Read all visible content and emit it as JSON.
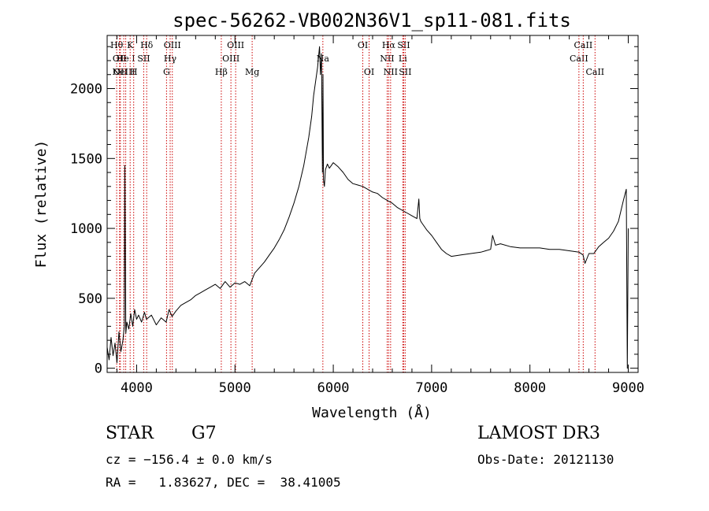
{
  "colors": {
    "ink": "#000000",
    "line_marker": "#cc0000",
    "background": "#ffffff"
  },
  "chart_data": {
    "type": "line",
    "title": "spec-56262-VB002N36V1_sp11-081.fits",
    "xlabel": "Wavelength (Å)",
    "ylabel": "Flux (relative)",
    "xlim": [
      3700,
      9100
    ],
    "ylim": [
      -30,
      2380
    ],
    "x_ticks": [
      4000,
      5000,
      6000,
      7000,
      8000,
      9000
    ],
    "x_tick_labels": [
      "4000",
      "5000",
      "6000",
      "7000",
      "8000",
      "9000"
    ],
    "y_ticks": [
      0,
      500,
      1000,
      1500,
      2000
    ],
    "y_tick_labels": [
      "0",
      "500",
      "1000",
      "1500",
      "2000"
    ],
    "grid": false,
    "series": [
      {
        "name": "flux",
        "x": [
          3700,
          3720,
          3740,
          3760,
          3780,
          3800,
          3820,
          3840,
          3860,
          3875,
          3880,
          3890,
          3900,
          3920,
          3940,
          3960,
          3980,
          4000,
          4020,
          4050,
          4080,
          4100,
          4150,
          4200,
          4250,
          4300,
          4330,
          4360,
          4400,
          4450,
          4500,
          4550,
          4600,
          4650,
          4700,
          4750,
          4800,
          4850,
          4900,
          4950,
          5000,
          5050,
          5100,
          5150,
          5200,
          5250,
          5300,
          5350,
          5400,
          5450,
          5500,
          5550,
          5600,
          5650,
          5700,
          5750,
          5780,
          5800,
          5820,
          5840,
          5860,
          5870,
          5880,
          5890,
          5895,
          5900,
          5910,
          5920,
          5940,
          5960,
          6000,
          6050,
          6100,
          6150,
          6200,
          6250,
          6300,
          6350,
          6400,
          6450,
          6500,
          6550,
          6600,
          6650,
          6700,
          6750,
          6800,
          6850,
          6870,
          6880,
          6890,
          6900,
          6950,
          7000,
          7050,
          7100,
          7150,
          7200,
          7300,
          7400,
          7500,
          7550,
          7600,
          7620,
          7650,
          7700,
          7800,
          7900,
          8000,
          8100,
          8200,
          8300,
          8400,
          8500,
          8540,
          8560,
          8600,
          8650,
          8700,
          8750,
          8800,
          8850,
          8900,
          8950,
          8980,
          8990,
          9000
        ],
        "y": [
          150,
          60,
          220,
          90,
          180,
          40,
          260,
          120,
          200,
          300,
          1450,
          250,
          330,
          280,
          390,
          300,
          420,
          350,
          380,
          330,
          400,
          350,
          380,
          310,
          360,
          330,
          420,
          370,
          410,
          450,
          470,
          490,
          520,
          540,
          560,
          580,
          600,
          570,
          620,
          580,
          610,
          600,
          620,
          590,
          680,
          720,
          760,
          810,
          860,
          920,
          990,
          1080,
          1180,
          1300,
          1450,
          1650,
          1800,
          1950,
          2050,
          2150,
          2300,
          2100,
          2250,
          1400,
          2100,
          1350,
          1300,
          1420,
          1460,
          1430,
          1470,
          1440,
          1400,
          1350,
          1320,
          1310,
          1300,
          1280,
          1260,
          1250,
          1220,
          1200,
          1180,
          1150,
          1130,
          1110,
          1090,
          1070,
          1210,
          1070,
          1050,
          1040,
          990,
          950,
          900,
          850,
          820,
          800,
          810,
          820,
          830,
          840,
          850,
          950,
          880,
          890,
          870,
          860,
          860,
          860,
          850,
          850,
          840,
          830,
          810,
          750,
          820,
          820,
          870,
          900,
          930,
          980,
          1050,
          1200,
          1280,
          0,
          1000
        ]
      }
    ],
    "line_markers": [
      {
        "x": 3797,
        "label": "Hθ",
        "row": 0
      },
      {
        "x": 3826,
        "label": "OII",
        "row": 1
      },
      {
        "x": 3835,
        "label": "OII",
        "row": 2
      },
      {
        "x": 3869,
        "label": "NeIII",
        "row": 2
      },
      {
        "x": 3889,
        "label": "He I",
        "row": 1
      },
      {
        "x": 3934,
        "label": "K",
        "row": 0
      },
      {
        "x": 3970,
        "label": "H",
        "row": 2
      },
      {
        "x": 4072,
        "label": "SII",
        "row": 1
      },
      {
        "x": 4102,
        "label": "Hδ",
        "row": 0
      },
      {
        "x": 4304,
        "label": "G",
        "row": 2
      },
      {
        "x": 4341,
        "label": "Hγ",
        "row": 1
      },
      {
        "x": 4363,
        "label": "OIII",
        "row": 0
      },
      {
        "x": 4861,
        "label": "Hβ",
        "row": 2
      },
      {
        "x": 4959,
        "label": "OIII",
        "row": 1
      },
      {
        "x": 5007,
        "label": "OIII",
        "row": 0
      },
      {
        "x": 5175,
        "label": "Mg",
        "row": 2
      },
      {
        "x": 5894,
        "label": "Na",
        "row": 1
      },
      {
        "x": 6300,
        "label": "OI",
        "row": 0
      },
      {
        "x": 6364,
        "label": "OI",
        "row": 2
      },
      {
        "x": 6548,
        "label": "NII",
        "row": 1
      },
      {
        "x": 6563,
        "label": "Hα",
        "row": 0
      },
      {
        "x": 6583,
        "label": "NII",
        "row": 2
      },
      {
        "x": 6707,
        "label": "Li",
        "row": 1
      },
      {
        "x": 6716,
        "label": "SII",
        "row": 0
      },
      {
        "x": 6731,
        "label": "SII",
        "row": 2
      },
      {
        "x": 8498,
        "label": "CaII",
        "row": 1
      },
      {
        "x": 8542,
        "label": "CaII",
        "row": 0
      },
      {
        "x": 8662,
        "label": "CaII",
        "row": 2
      }
    ]
  },
  "info": {
    "object_class": "STAR",
    "subclass": "G7",
    "survey": "LAMOST DR3",
    "redshift_line": "cz = −156.4 ± 0.0 km/s",
    "obs_date_line": "Obs-Date: 20121130",
    "coords_line": "RA =   1.83627, DEC =  38.41005"
  }
}
